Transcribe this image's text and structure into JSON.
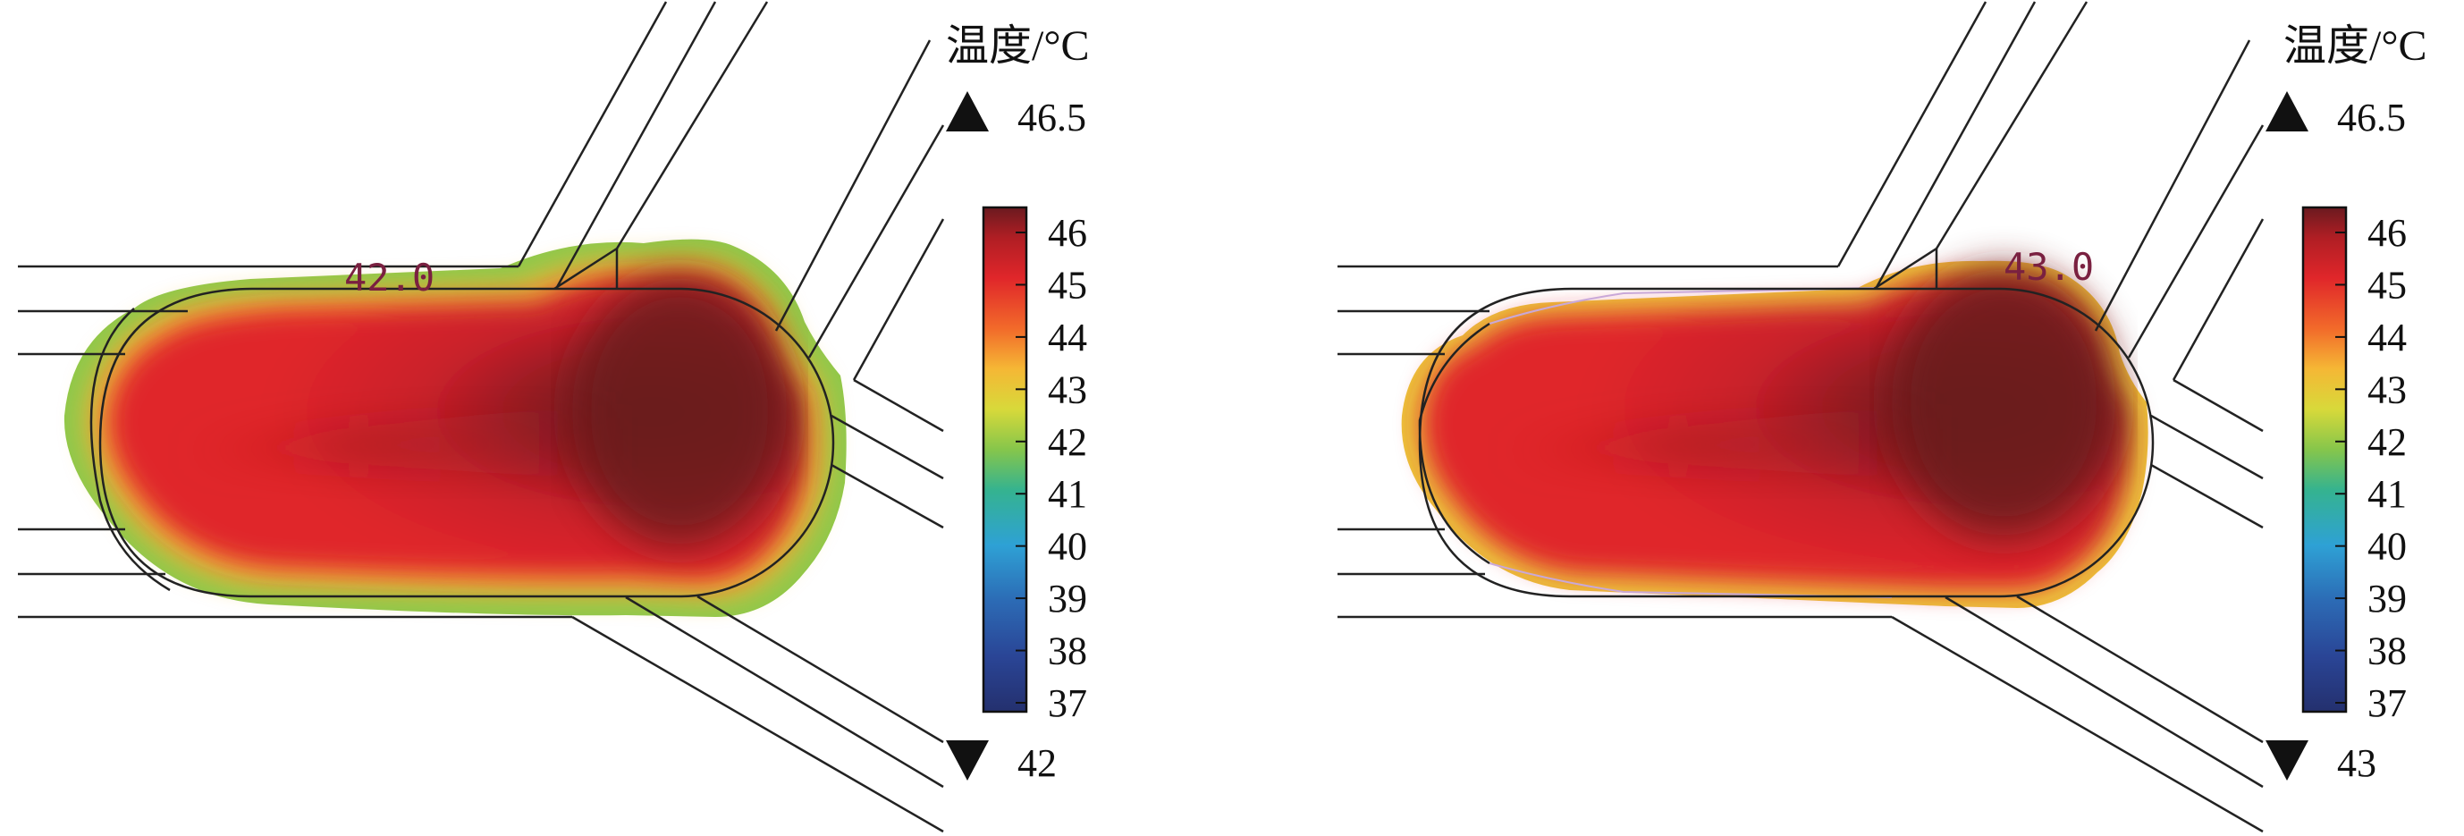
{
  "panels": [
    {
      "id": "left",
      "unit_label": "温度/°C",
      "max_marker": "46.5",
      "min_marker": "42",
      "isotherm_label": "42.0",
      "ticks": [
        "46",
        "45",
        "44",
        "43",
        "42",
        "41",
        "40",
        "39",
        "38",
        "37"
      ]
    },
    {
      "id": "right",
      "unit_label": "温度/°C",
      "max_marker": "46.5",
      "min_marker": "43",
      "isotherm_label": "43.0",
      "ticks": [
        "46",
        "45",
        "44",
        "43",
        "42",
        "41",
        "40",
        "39",
        "38",
        "37"
      ]
    }
  ],
  "colors": {
    "scale": [
      "#6b1a1f",
      "#b01e24",
      "#e0262a",
      "#f26a2a",
      "#f5b735",
      "#d8d93a",
      "#86c64b",
      "#35b38f",
      "#2ea1d5",
      "#2c6bb5",
      "#2a4596",
      "#24306e"
    ],
    "background": "#ffffff",
    "outline": "#222222"
  }
}
